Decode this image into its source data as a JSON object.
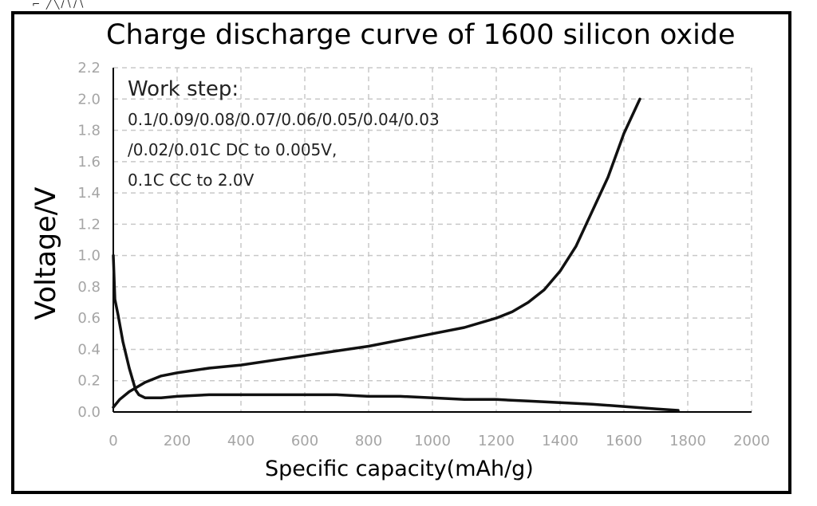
{
  "header_scribble": "⌐ ╱╲∕∖∕∖",
  "chart_data": {
    "type": "line",
    "title": "Charge discharge curve of 1600 silicon oxide",
    "xlabel": "Specific capacity(mAh/g)",
    "ylabel": "Voltage/V",
    "xlim": [
      0,
      2000
    ],
    "ylim": [
      0,
      2.2
    ],
    "xticks": [
      "0",
      "200",
      "400",
      "600",
      "800",
      "1000",
      "1200",
      "1400",
      "1600",
      "1800",
      "2000"
    ],
    "yticks": [
      "0.0",
      "0.2",
      "0.4",
      "0.6",
      "0.8",
      "1.0",
      "1.2",
      "1.4",
      "1.6",
      "1.8",
      "2.0",
      "2.2"
    ],
    "grid": true,
    "colors": {
      "curve": "#111111",
      "grid": "#c8c8c8",
      "tick": "#a5a5a5",
      "axes": "#000000"
    },
    "annotation": {
      "heading": "Work step:",
      "lines": [
        "0.1/0.09/0.08/0.07/0.06/0.05/0.04/0.03",
        "/0.02/0.01C DC to 0.005V,",
        "0.1C CC to 2.0V"
      ]
    },
    "series": [
      {
        "x": [
          0,
          5,
          15,
          30,
          50,
          70,
          80,
          100,
          150,
          200,
          300,
          400,
          500,
          600,
          700,
          800,
          900,
          1000,
          1100,
          1200,
          1300,
          1400,
          1500,
          1600,
          1700,
          1770
        ],
        "y": [
          1.0,
          0.72,
          0.62,
          0.45,
          0.28,
          0.14,
          0.11,
          0.09,
          0.09,
          0.1,
          0.11,
          0.11,
          0.11,
          0.11,
          0.11,
          0.1,
          0.1,
          0.09,
          0.08,
          0.08,
          0.07,
          0.06,
          0.05,
          0.035,
          0.02,
          0.01
        ]
      },
      {
        "x": [
          0,
          20,
          50,
          100,
          150,
          200,
          300,
          400,
          500,
          600,
          700,
          800,
          900,
          1000,
          1100,
          1200,
          1250,
          1300,
          1350,
          1400,
          1450,
          1500,
          1550,
          1600,
          1650
        ],
        "y": [
          0.03,
          0.08,
          0.13,
          0.19,
          0.23,
          0.25,
          0.28,
          0.3,
          0.33,
          0.36,
          0.39,
          0.42,
          0.46,
          0.5,
          0.54,
          0.6,
          0.64,
          0.7,
          0.78,
          0.9,
          1.06,
          1.28,
          1.5,
          1.78,
          2.0
        ]
      }
    ]
  }
}
